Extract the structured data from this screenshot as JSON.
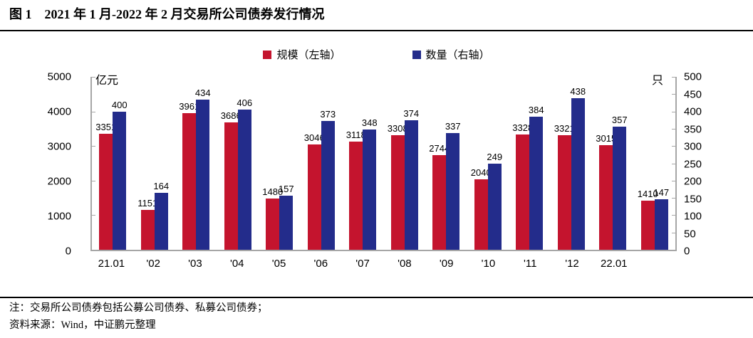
{
  "title": "图 1　2021 年 1 月-2022 年 2 月交易所公司债券发行情况",
  "legend": [
    {
      "label": "规模（左轴）",
      "color": "#c4142e"
    },
    {
      "label": "数量（右轴）",
      "color": "#232c8b"
    }
  ],
  "left_axis": {
    "unit": "亿元",
    "ticks": [
      5000,
      4000,
      3000,
      2000,
      1000,
      0
    ]
  },
  "right_axis": {
    "unit": "只",
    "ticks": [
      500,
      450,
      400,
      350,
      300,
      250,
      200,
      150,
      100,
      50,
      0
    ]
  },
  "colors": {
    "axis": "#a6a6a6",
    "rule": "#000000",
    "scale_bar": "#c4142e",
    "count_bar": "#232c8b"
  },
  "chart_data": {
    "type": "bar",
    "title": "2021年1月-2022年2月交易所公司债券发行情况",
    "xlabel": "",
    "ylabel_left": "亿元",
    "ylabel_right": "只",
    "grid": false,
    "legend_position": "top",
    "left_ylim": [
      0,
      5000
    ],
    "right_ylim": [
      0,
      500
    ],
    "categories": [
      "21.01",
      "'02",
      "'03",
      "'04",
      "'05",
      "'06",
      "'07",
      "'08",
      "'09",
      "'10",
      "'11",
      "'12",
      "22.01",
      ""
    ],
    "series": [
      {
        "name": "规模（左轴）",
        "axis": "left",
        "color": "#c4142e",
        "values": [
          3351,
          1151,
          3961,
          3686,
          1480,
          3046,
          3118,
          3308,
          2744,
          2040,
          3328,
          3321,
          3015,
          1410
        ]
      },
      {
        "name": "数量（右轴）",
        "axis": "right",
        "color": "#232c8b",
        "values": [
          400,
          164,
          434,
          406,
          157,
          373,
          348,
          374,
          337,
          249,
          384,
          438,
          357,
          147
        ]
      }
    ]
  },
  "notes": [
    "注：交易所公司债券包括公募公司债券、私募公司债券；",
    "资料来源：Wind，中证鹏元整理"
  ]
}
